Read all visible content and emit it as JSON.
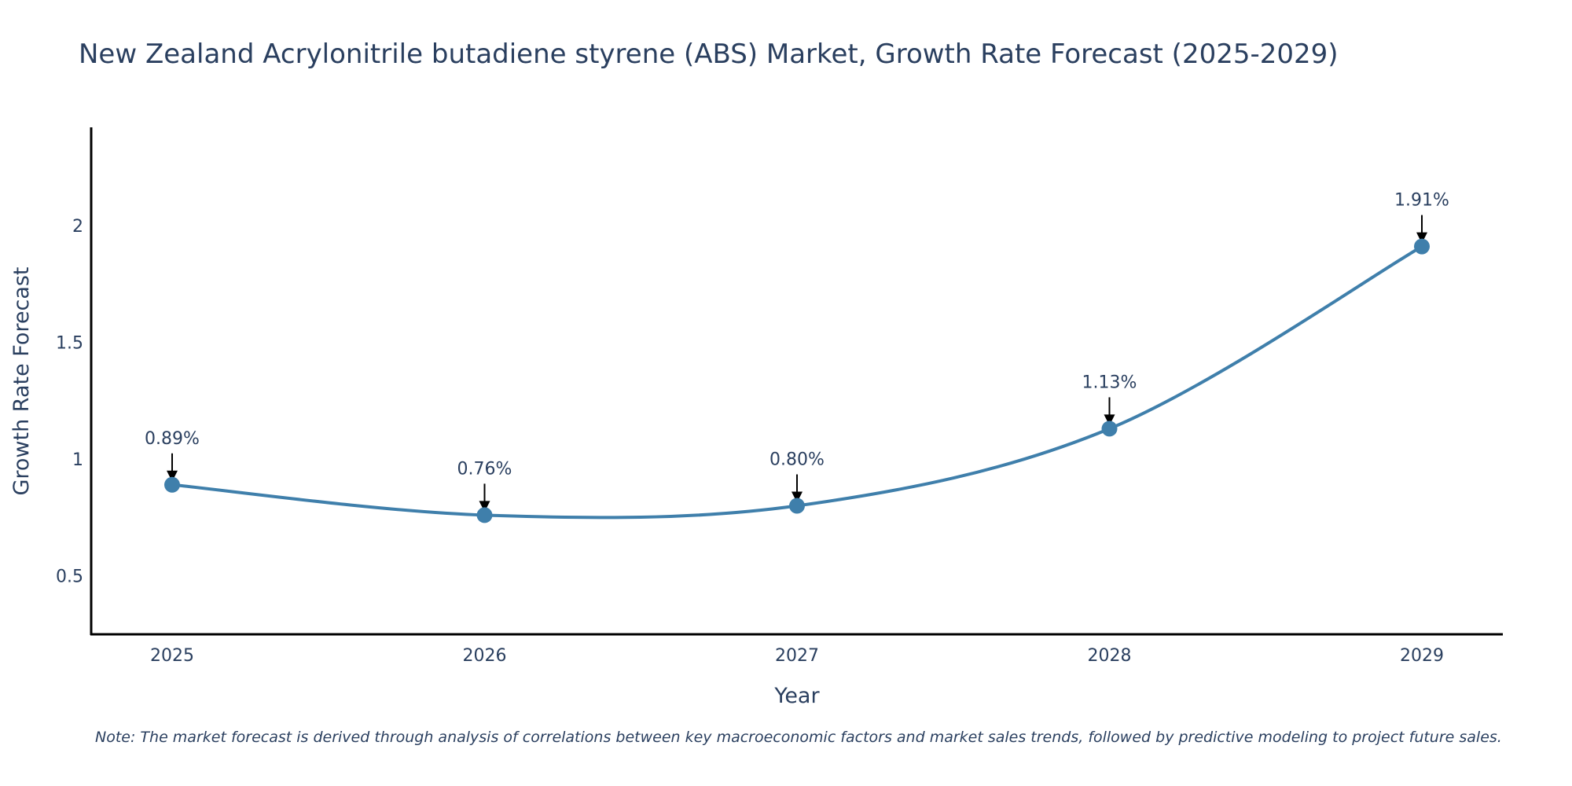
{
  "chart_data": {
    "type": "line",
    "title": "New Zealand Acrylonitrile butadiene styrene (ABS) Market, Growth Rate Forecast (2025-2029)",
    "xlabel": "Year",
    "ylabel": "Growth Rate Forecast",
    "categories": [
      "2025",
      "2026",
      "2027",
      "2028",
      "2029"
    ],
    "series": [
      {
        "name": "Growth Rate Forecast",
        "values": [
          0.89,
          0.76,
          0.8,
          1.13,
          1.91
        ],
        "labels": [
          "0.89%",
          "0.76%",
          "0.80%",
          "1.13%",
          "1.91%"
        ]
      }
    ],
    "yticks": [
      0.5,
      1,
      1.5,
      2
    ],
    "ytick_labels": [
      "0.5",
      "1",
      "1.5",
      "2"
    ],
    "ylim": [
      0.25,
      2.42
    ],
    "grid": false,
    "line_shape": "spline",
    "line_color": "#3f7fab",
    "marker_color": "#3f7fab",
    "note": "Note: The market forecast is derived through analysis of correlations between key macroeconomic factors and market sales trends, followed by predictive modeling to project future sales."
  }
}
